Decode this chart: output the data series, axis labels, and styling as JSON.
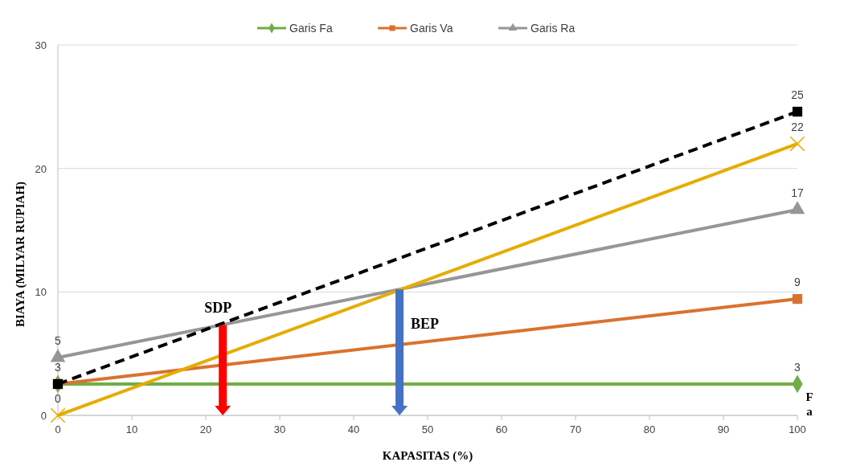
{
  "chart_data": {
    "type": "line",
    "xlabel": "KAPASITAS (%)",
    "ylabel": "BIAYA (MILYAR RUPIAH)",
    "x": [
      0,
      100
    ],
    "xlim": [
      0,
      100
    ],
    "xticks": [
      0,
      10,
      20,
      30,
      40,
      50,
      60,
      70,
      80,
      90,
      100
    ],
    "ylim": [
      0,
      30
    ],
    "yticks": [
      0,
      10,
      20,
      30
    ],
    "grid": "y",
    "legend": "top",
    "series": [
      {
        "name": "Garis Fa",
        "color": "#70ad47",
        "marker": "diamond",
        "values": [
          2.54,
          2.54
        ],
        "value_labels": [
          null,
          "3"
        ]
      },
      {
        "name": "Garis Va",
        "color": "#d9722e",
        "marker": "square",
        "values": [
          2.54,
          9.43
        ],
        "value_labels": [
          null,
          "9"
        ]
      },
      {
        "name": "Garis Ra",
        "color": "#969696",
        "marker": "triangle",
        "values": [
          4.68,
          16.66
        ],
        "value_labels": [
          "5",
          "17"
        ]
      },
      {
        "color": "#000000",
        "marker": "square",
        "line_style": "dashed",
        "values": [
          2.54,
          24.6
        ],
        "value_labels": [
          "3",
          "25"
        ]
      },
      {
        "color": "#e6ac00",
        "marker": "cross",
        "values": [
          0,
          22
        ],
        "value_labels": [
          "0",
          "22"
        ]
      }
    ],
    "annotations": [
      {
        "text": "SDP",
        "x": 22.3,
        "y": 7.3
      },
      {
        "text": "BEP",
        "x": 46.2,
        "y": 10.2
      },
      "F a"
    ]
  }
}
